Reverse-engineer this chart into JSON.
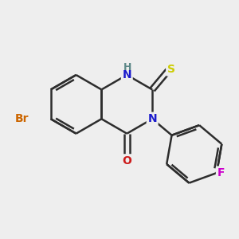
{
  "bg_color": "#eeeeee",
  "bond_color": "#2d2d2d",
  "bond_width": 1.8,
  "atom_colors": {
    "N": "#1a1acc",
    "H": "#5c8888",
    "S": "#cccc00",
    "O": "#cc1a1a",
    "Br": "#cc6600",
    "F": "#cc00cc"
  },
  "font_size": 10,
  "fig_size": [
    3.0,
    3.0
  ],
  "dpi": 100
}
